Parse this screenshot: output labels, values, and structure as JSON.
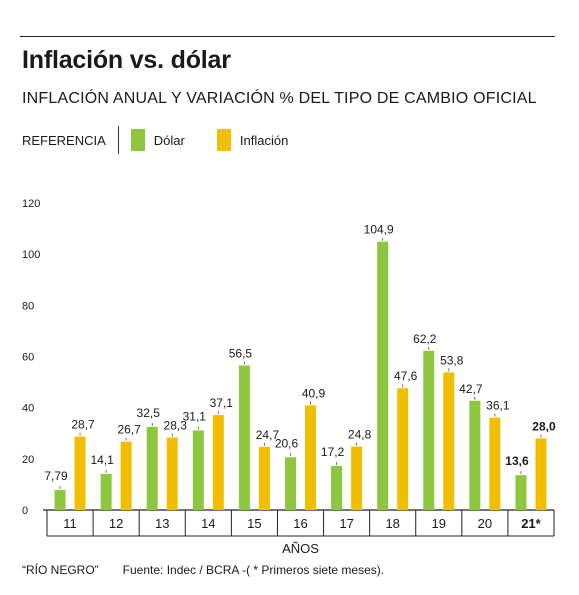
{
  "title": "Inflación vs. dólar",
  "subtitle": "INFLACIÓN ANUAL Y VARIACIÓN % DEL TIPO DE CAMBIO OFICIAL",
  "legend": {
    "reference_label": "REFERENCIA",
    "dolar_label": "Dólar",
    "inflacion_label": "Inflación"
  },
  "footer": {
    "brand": "“RÍO NEGRO”",
    "source": "Fuente: Indec / BCRA -( * Primeros siete meses)."
  },
  "colors": {
    "dolar": "#8dc63f",
    "inflacion": "#f2be00"
  },
  "chart_data": {
    "type": "bar",
    "xlabel": "AÑOS",
    "ylabel": "",
    "ylim": [
      0,
      120
    ],
    "yticks": [
      "0",
      "20",
      "40",
      "60",
      "80",
      "100",
      "120"
    ],
    "categories": [
      "11",
      "12",
      "13",
      "14",
      "15",
      "16",
      "17",
      "18",
      "19",
      "20",
      "21*"
    ],
    "series": [
      {
        "name": "Dólar",
        "values": [
          7.79,
          14.1,
          32.5,
          31.1,
          56.5,
          20.6,
          17.2,
          104.9,
          62.2,
          42.7,
          13.6
        ],
        "labels": [
          "7,79",
          "14,1",
          "32,5",
          "31,1",
          "56,5",
          "20,6",
          "17,2",
          "104,9",
          "62,2",
          "42,7",
          "13,6"
        ]
      },
      {
        "name": "Inflación",
        "values": [
          28.7,
          26.7,
          28.3,
          37.1,
          24.7,
          40.9,
          24.8,
          47.6,
          53.8,
          36.1,
          28.0
        ],
        "labels": [
          "28,7",
          "26,7",
          "28,3",
          "37,1",
          "24,7",
          "40,9",
          "24,8",
          "47,6",
          "53,8",
          "36,1",
          "28,0"
        ]
      }
    ]
  }
}
